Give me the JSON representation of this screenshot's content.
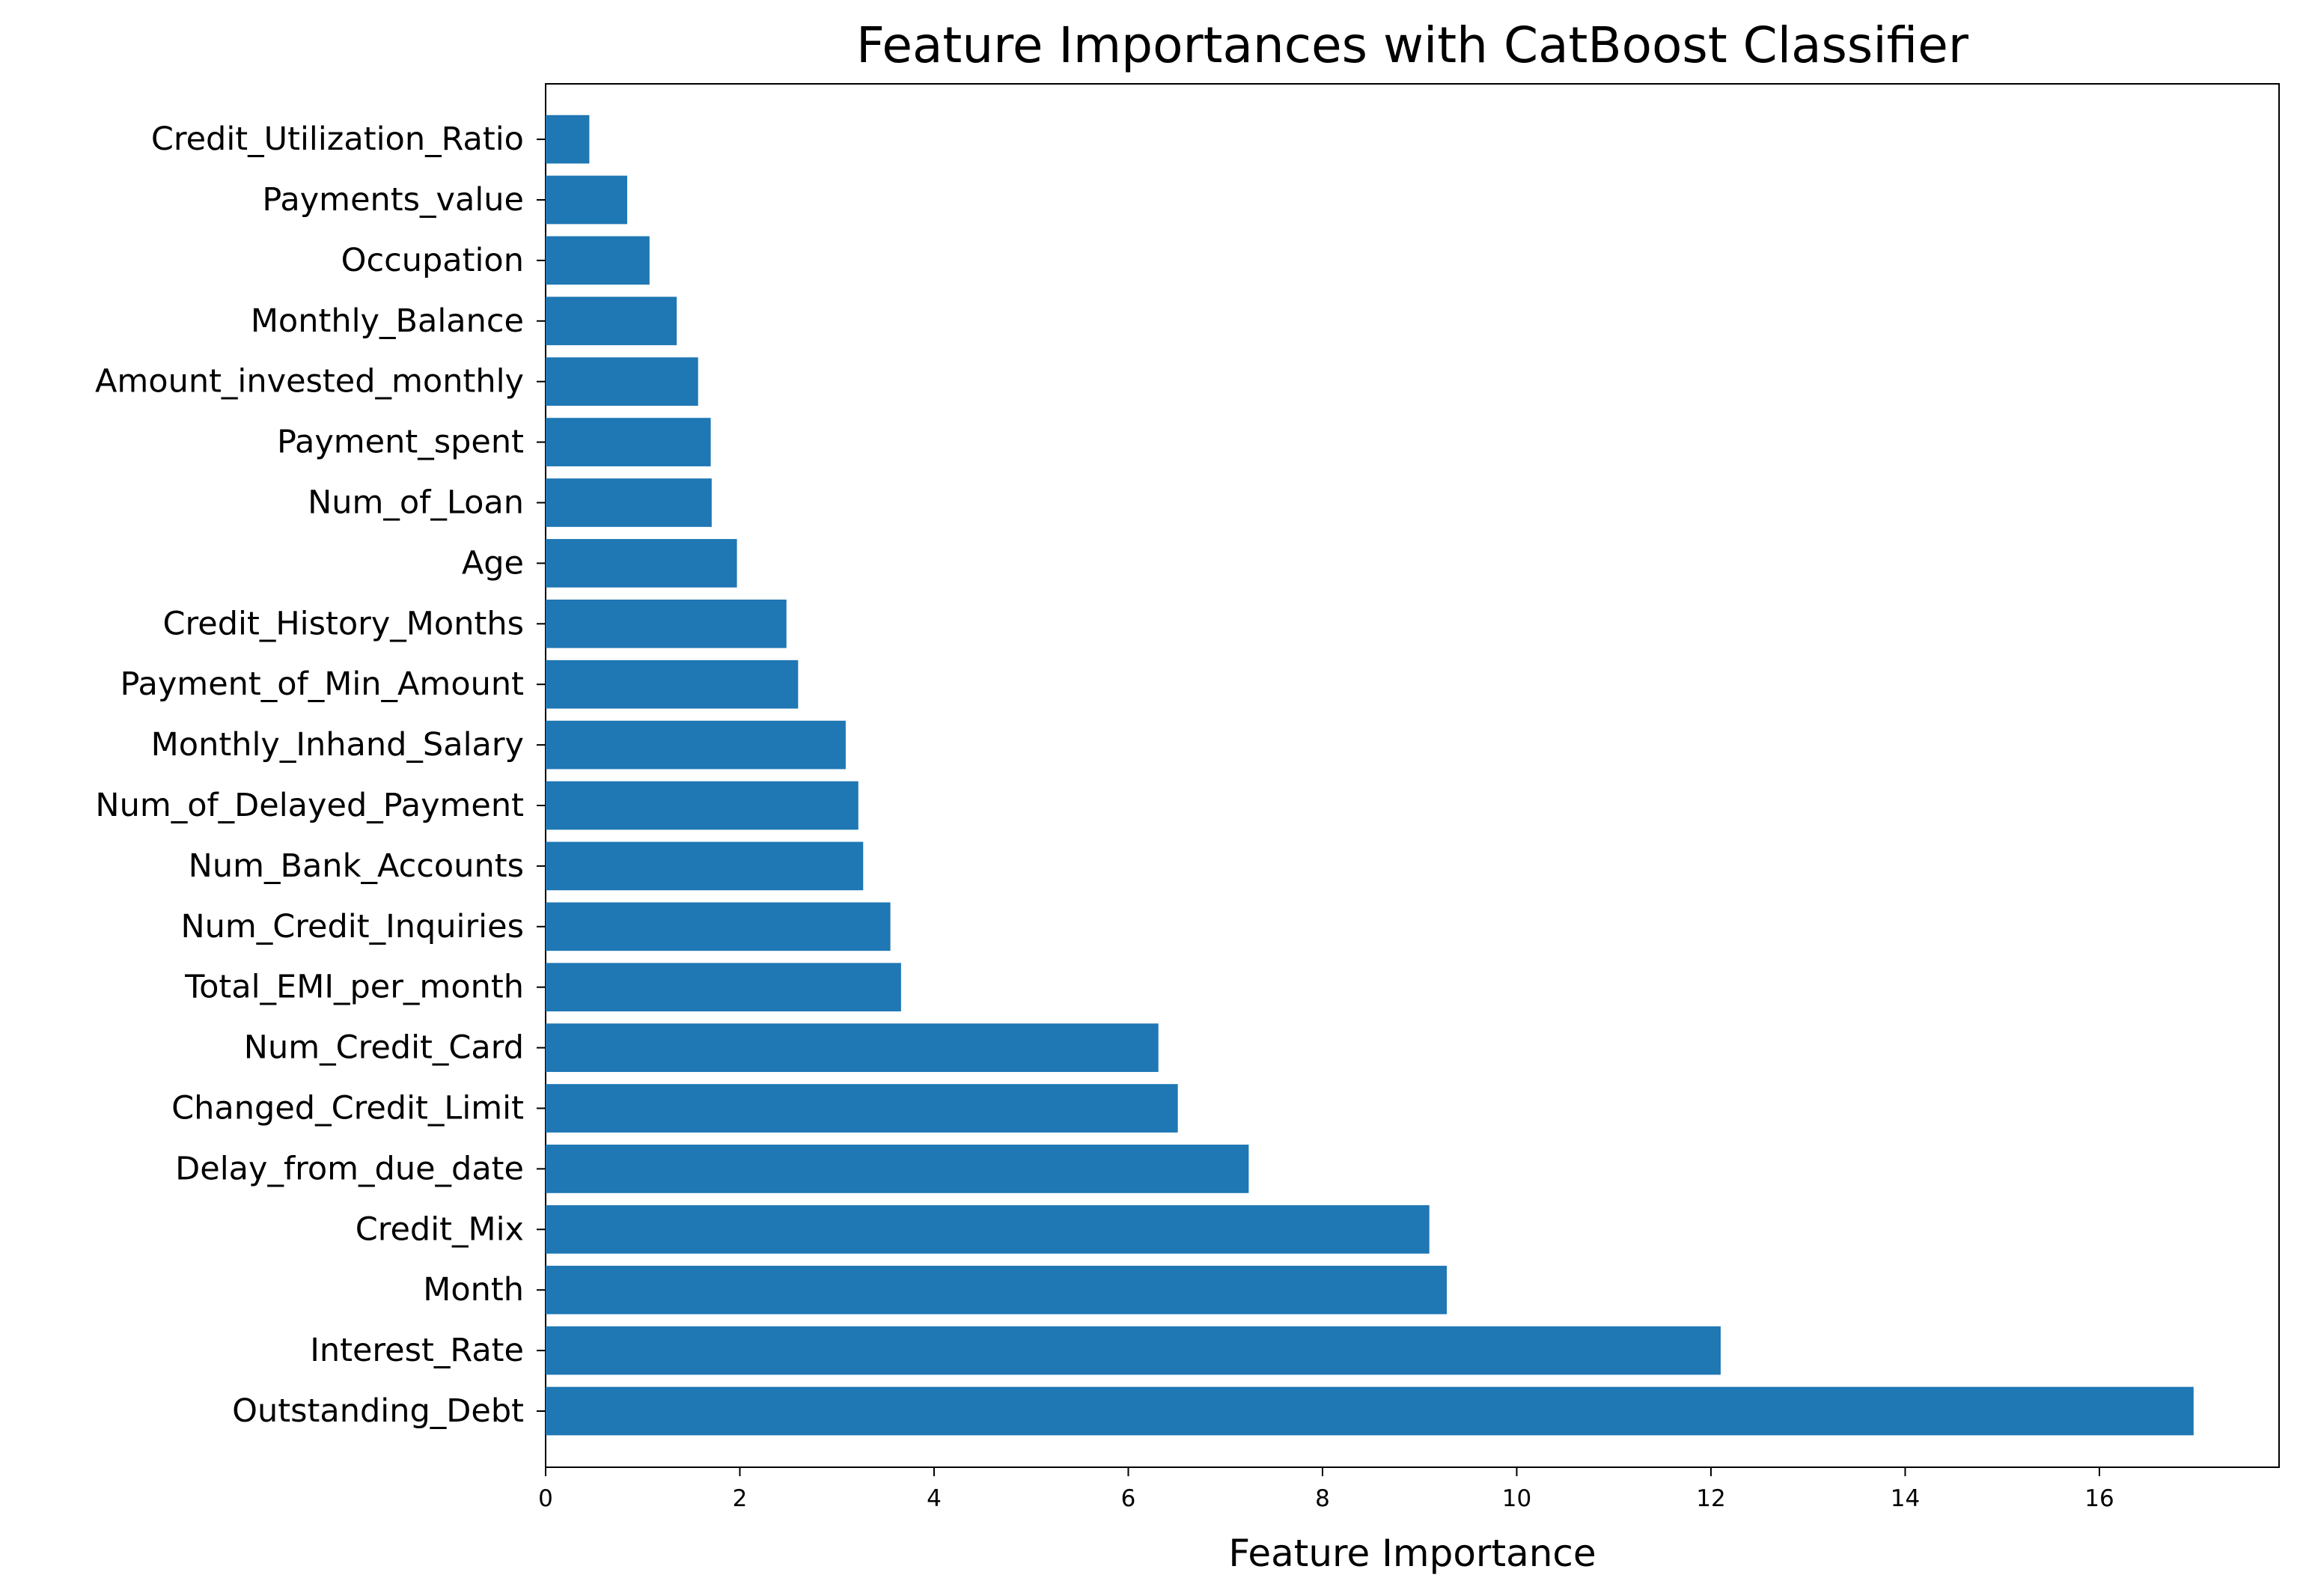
{
  "chart_data": {
    "type": "bar",
    "orientation": "horizontal",
    "title": "Feature Importances with CatBoost Classifier",
    "xlabel": "Feature Importance",
    "ylabel": "",
    "xlim": [
      0,
      17.85
    ],
    "xticks": [
      0,
      2,
      4,
      6,
      8,
      10,
      12,
      14,
      16
    ],
    "grid": false,
    "legend": "none",
    "bar_color": "#1f77b4",
    "categories": [
      "Outstanding_Debt",
      "Interest_Rate",
      "Month",
      "Credit_Mix",
      "Delay_from_due_date",
      "Changed_Credit_Limit",
      "Num_Credit_Card",
      "Total_EMI_per_month",
      "Num_Credit_Inquiries",
      "Num_Bank_Accounts",
      "Num_of_Delayed_Payment",
      "Monthly_Inhand_Salary",
      "Payment_of_Min_Amount",
      "Credit_History_Months",
      "Age",
      "Num_of_Loan",
      "Payment_spent",
      "Amount_invested_monthly",
      "Monthly_Balance",
      "Occupation",
      "Payments_value",
      "Credit_Utilization_Ratio"
    ],
    "values": [
      16.97,
      12.1,
      9.28,
      9.1,
      7.24,
      6.51,
      6.31,
      3.66,
      3.55,
      3.27,
      3.22,
      3.09,
      2.6,
      2.48,
      1.97,
      1.71,
      1.7,
      1.57,
      1.35,
      1.07,
      0.84,
      0.45
    ]
  }
}
